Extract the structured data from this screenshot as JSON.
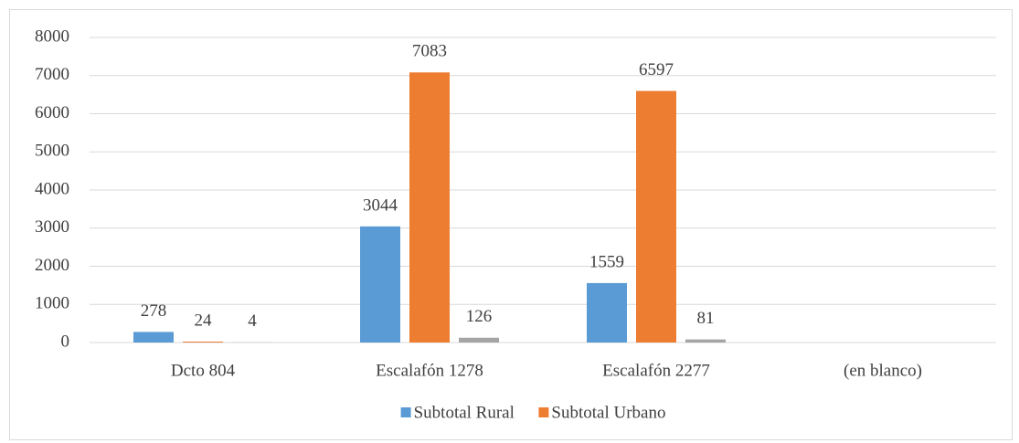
{
  "chart_data": {
    "type": "bar",
    "categories": [
      "Dcto 804",
      "Escalafón 1278",
      "Escalafón 2277",
      "(en blanco)"
    ],
    "series": [
      {
        "name": "Subtotal Rural",
        "color": "#5b9bd5",
        "values": [
          278,
          3044,
          1559,
          null
        ]
      },
      {
        "name": "Subtotal Urbano",
        "color": "#ed7d31",
        "values": [
          24,
          7083,
          6597,
          null
        ]
      },
      {
        "color": "#a5a5a5",
        "values": [
          4,
          126,
          81,
          null
        ]
      }
    ],
    "ylim": [
      0,
      8000
    ],
    "yticks": [
      0,
      1000,
      2000,
      3000,
      4000,
      5000,
      6000,
      7000,
      8000
    ],
    "grid": true,
    "legend": "bottom"
  }
}
